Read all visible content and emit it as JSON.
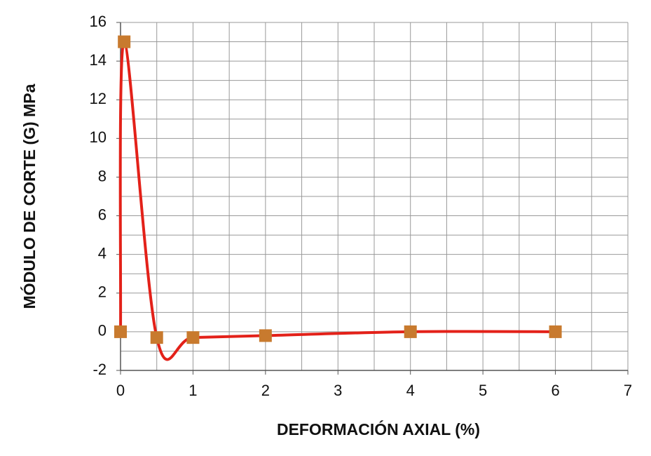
{
  "chart_data": {
    "type": "scatter",
    "xlabel": "DEFORMACIÓN AXIAL (%)",
    "ylabel": "MÓDULO DE CORTE (G) MPa",
    "series": [
      {
        "x": [
          0,
          0.05,
          0.5,
          1,
          2,
          4,
          6
        ],
        "values": [
          0,
          15,
          -0.3,
          -0.3,
          -0.2,
          0,
          0
        ],
        "color": "#e32119",
        "marker_color": "#c87a2e"
      }
    ],
    "xlim": [
      0,
      7
    ],
    "ylim": [
      -2,
      16
    ],
    "xticks": [
      0,
      1,
      2,
      3,
      4,
      5,
      6,
      7
    ],
    "yticks": [
      -2,
      0,
      2,
      4,
      6,
      8,
      10,
      12,
      14,
      16
    ],
    "xgrid": [
      0.5,
      1,
      1.5,
      2,
      2.5,
      3,
      3.5,
      4,
      4.5,
      5,
      5.5,
      6,
      6.5,
      7
    ],
    "ygrid": [
      -1,
      0,
      1,
      2,
      3,
      4,
      5,
      6,
      7,
      8,
      9,
      10,
      11,
      12,
      13,
      14,
      15,
      16
    ],
    "grid": true
  }
}
